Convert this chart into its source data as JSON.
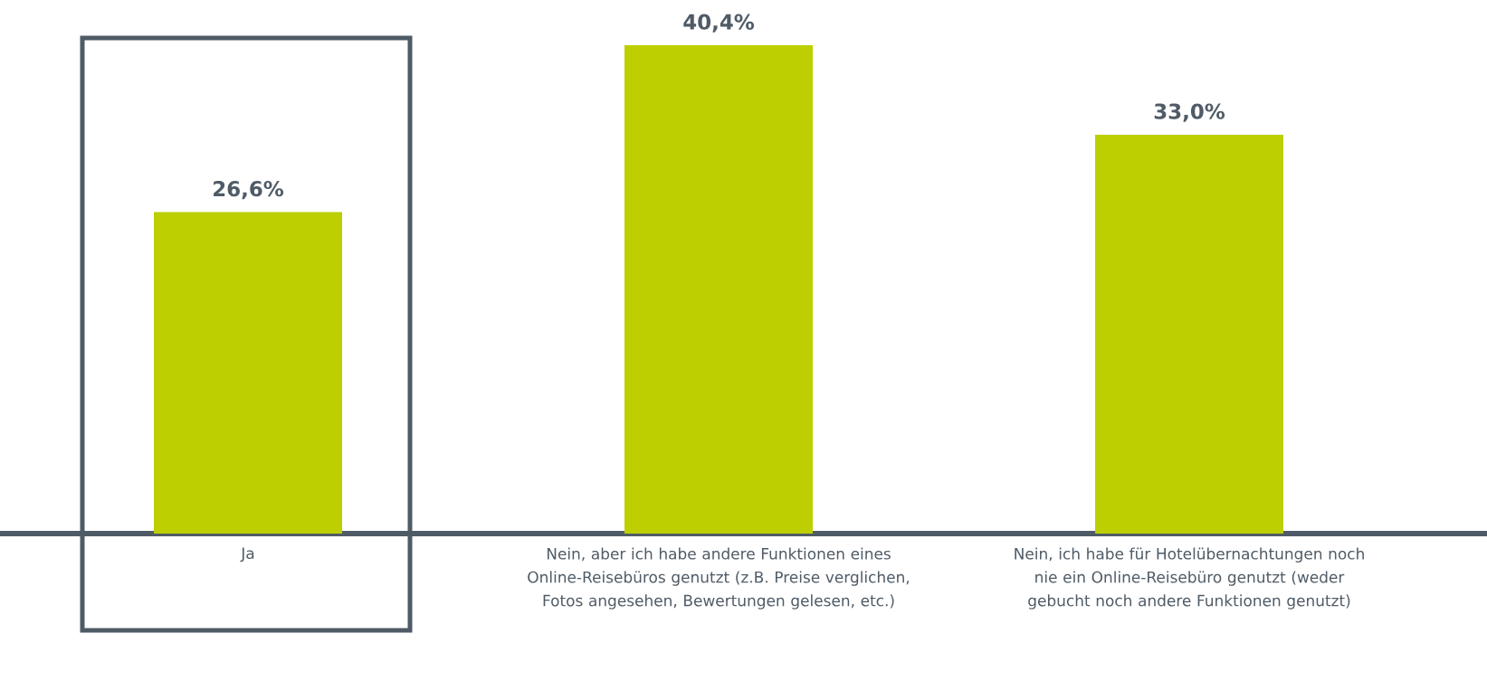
{
  "chart_data": {
    "type": "bar",
    "categories": [
      "Ja",
      "Nein, aber ich habe andere Funktionen eines Online-Reisebüros genutzt (z.B. Preise verglichen, Fotos angesehen, Bewertungen gelesen, etc.)",
      "Nein, ich habe für Hotelübernachtungen noch nie ein Online-Reisebüro genutzt (weder gebucht noch andere Funktionen genutzt)"
    ],
    "values": [
      26.6,
      40.4,
      33.0
    ],
    "value_labels": [
      "26,6%",
      "40,4%",
      "33,0%"
    ],
    "color": "#bdcf00"
  }
}
